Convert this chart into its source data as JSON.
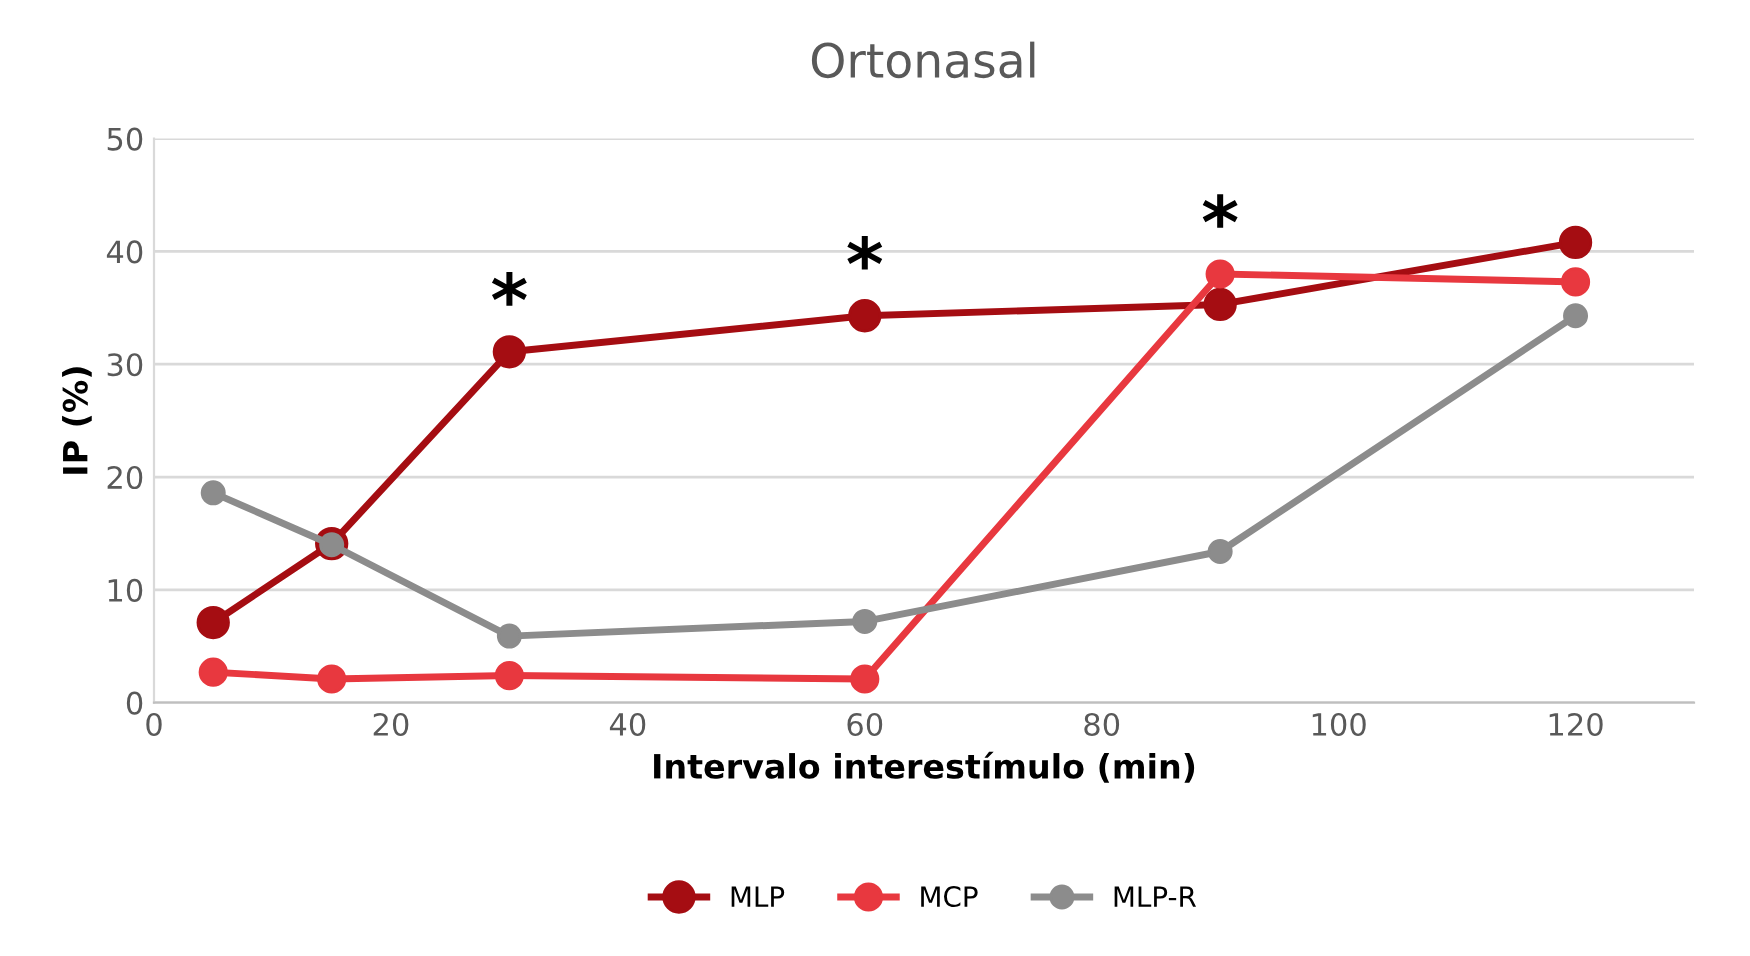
{
  "chart_data": {
    "type": "line",
    "title": "Ortonasal",
    "xlabel": "Intervalo interestímulo (min)",
    "ylabel": "IP (%)",
    "x": [
      5,
      15,
      30,
      60,
      90,
      120
    ],
    "series": [
      {
        "name": "MLP",
        "color": "#a50d12",
        "values": [
          7.1,
          14.1,
          31.1,
          34.3,
          35.3,
          40.8
        ]
      },
      {
        "name": "MCP",
        "color": "#e8383f",
        "values": [
          2.7,
          2.1,
          2.4,
          2.1,
          38,
          37.3
        ]
      },
      {
        "name": "MLP-R",
        "color": "#8c8c8c",
        "values": [
          18.6,
          14,
          5.9,
          7.2,
          13.4,
          34.3
        ]
      }
    ],
    "xlim": [
      0,
      130
    ],
    "xticks": [
      0,
      20,
      40,
      60,
      80,
      100,
      120
    ],
    "ylim": [
      0,
      50
    ],
    "yticks": [
      0,
      10,
      20,
      30,
      40,
      50
    ],
    "annotations": [
      {
        "text": "*",
        "x": 30,
        "y": 31.1
      },
      {
        "text": "*",
        "x": 60,
        "y": 34.3
      },
      {
        "text": "*",
        "x": 90,
        "y": 38
      }
    ],
    "grid": "y",
    "legend": "bottom",
    "marker": "circle",
    "line_style": "solid"
  }
}
